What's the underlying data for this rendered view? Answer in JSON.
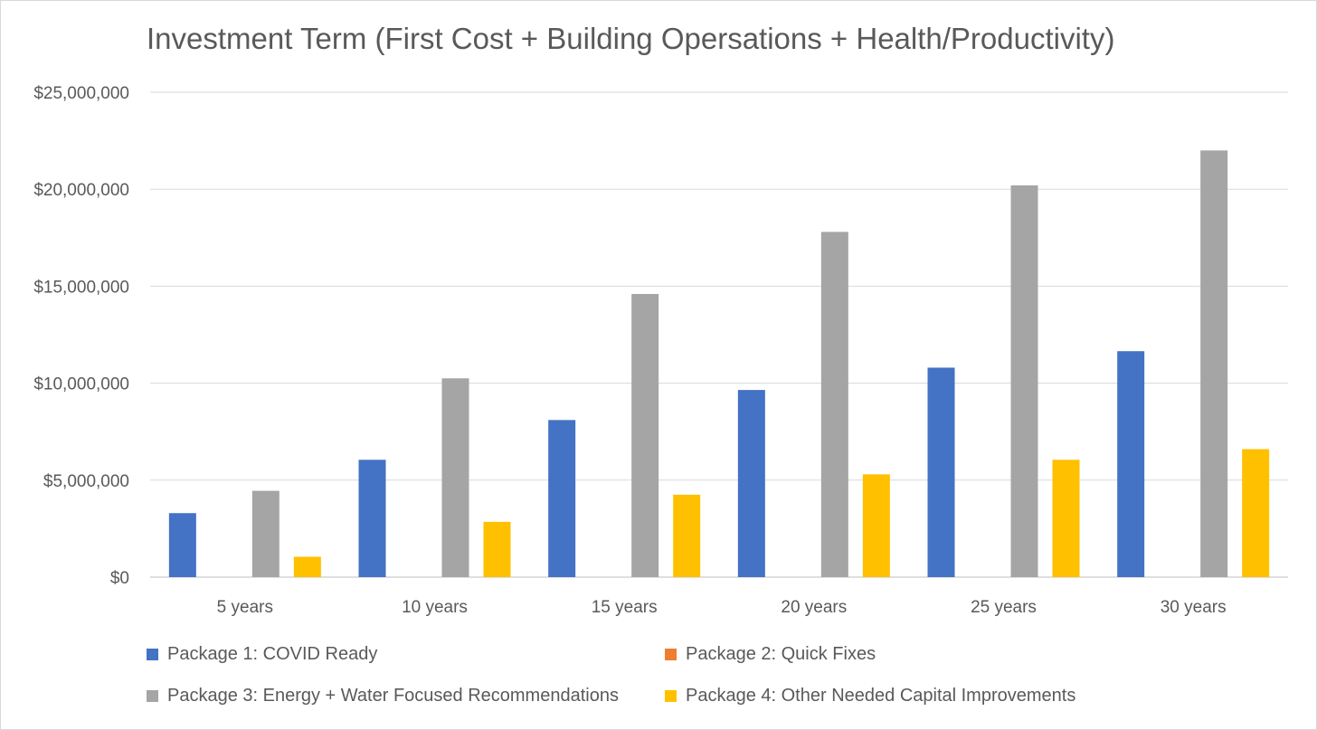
{
  "chart_data": {
    "type": "bar",
    "title": "Investment Term (First Cost + Building Opersations + Health/Productivity)",
    "xlabel": "",
    "ylabel": "",
    "categories": [
      "5 years",
      "10 years",
      "15 years",
      "20 years",
      "25 years",
      "30 years"
    ],
    "ylim": [
      0,
      25000000
    ],
    "yticks": [
      0,
      5000000,
      10000000,
      15000000,
      20000000,
      25000000
    ],
    "ytick_labels": [
      "$0",
      "$5,000,000",
      "$10,000,000",
      "$15,000,000",
      "$20,000,000",
      "$25,000,000"
    ],
    "grid": true,
    "legend_position": "bottom",
    "series": [
      {
        "name": "Package 1: COVID Ready",
        "color": "#4472C4",
        "values": [
          3300000,
          6050000,
          8100000,
          9650000,
          10800000,
          11650000
        ]
      },
      {
        "name": "Package 2: Quick Fixes",
        "color": "#ED7D31",
        "values": [
          0,
          0,
          0,
          0,
          0,
          0
        ]
      },
      {
        "name": "Package 3: Energy + Water Focused Recommendations",
        "color": "#A5A5A5",
        "values": [
          4450000,
          10250000,
          14600000,
          17800000,
          20200000,
          22000000
        ]
      },
      {
        "name": "Package 4: Other Needed Capital Improvements",
        "color": "#FFC000",
        "values": [
          1050000,
          2850000,
          4250000,
          5300000,
          6050000,
          6600000
        ]
      }
    ]
  }
}
